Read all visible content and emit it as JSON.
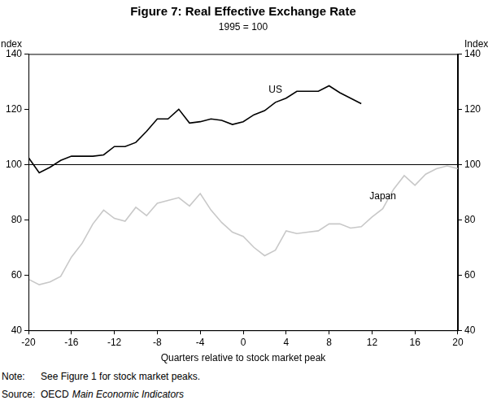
{
  "chart_data": {
    "type": "line",
    "title": "Figure 7: Real Effective Exchange Rate",
    "subtitle": "1995 = 100",
    "x_label": "Quarters relative to stock market peak",
    "y_label": "Index",
    "y2_label": "Index",
    "xlim": [
      -20,
      20
    ],
    "xticks": [
      -20,
      -16,
      -12,
      -8,
      -4,
      0,
      4,
      8,
      12,
      16,
      20
    ],
    "ylim": [
      40,
      140
    ],
    "yticks": [
      40,
      60,
      80,
      100,
      120,
      140
    ],
    "y2lim": [
      40,
      140
    ],
    "y2ticks": [
      40,
      60,
      80,
      100,
      120,
      140
    ],
    "grid": false,
    "hlines": [
      100
    ],
    "series": [
      {
        "name": "US",
        "color": "#000000",
        "x": [
          -20,
          -19,
          -18,
          -17,
          -16,
          -15,
          -14,
          -13,
          -12,
          -11,
          -10,
          -9,
          -8,
          -7,
          -6,
          -5,
          -4,
          -3,
          -2,
          -1,
          0,
          1,
          2,
          3,
          4,
          5,
          6,
          7,
          8,
          9,
          10,
          11
        ],
        "values": [
          102.5,
          97,
          99,
          101.5,
          103,
          103,
          103,
          103.5,
          106.5,
          106.5,
          108,
          112,
          116.5,
          116.5,
          120,
          115,
          115.5,
          116.5,
          116,
          114.5,
          115.5,
          118,
          119.5,
          122.5,
          124,
          126.5,
          126.5,
          126.5,
          128.5,
          126,
          124,
          122
        ]
      },
      {
        "name": "Japan",
        "color": "#c8c8c8",
        "x": [
          -20,
          -19,
          -18,
          -17,
          -16,
          -15,
          -14,
          -13,
          -12,
          -11,
          -10,
          -9,
          -8,
          -7,
          -6,
          -5,
          -4,
          -3,
          -2,
          -1,
          0,
          1,
          2,
          3,
          4,
          5,
          6,
          7,
          8,
          9,
          10,
          11,
          12,
          13,
          14,
          15,
          16,
          17,
          18,
          19,
          20
        ],
        "values": [
          58.5,
          56.5,
          57.5,
          59.5,
          66.5,
          71.5,
          78.5,
          83.5,
          80.5,
          79.5,
          84.5,
          81.5,
          86,
          87,
          88,
          85,
          89.5,
          83.5,
          79,
          75.5,
          74,
          70,
          67,
          69,
          76,
          75,
          75.5,
          76,
          78.5,
          78.5,
          77,
          77.5,
          81,
          84,
          91,
          96,
          92.5,
          96.5,
          98.5,
          99.5,
          98.5
        ]
      }
    ],
    "annotations": [
      {
        "text": "US",
        "x": 3,
        "y": 127,
        "series": "US"
      },
      {
        "text": "Japan",
        "x": 13,
        "y": 88.5,
        "series": "Japan"
      }
    ],
    "notes": [
      {
        "label": "Note:",
        "text": "See Figure 1 for stock market peaks."
      },
      {
        "label": "Source:",
        "text": "OECD",
        "italic_text": "Main Economic Indicators"
      }
    ]
  }
}
